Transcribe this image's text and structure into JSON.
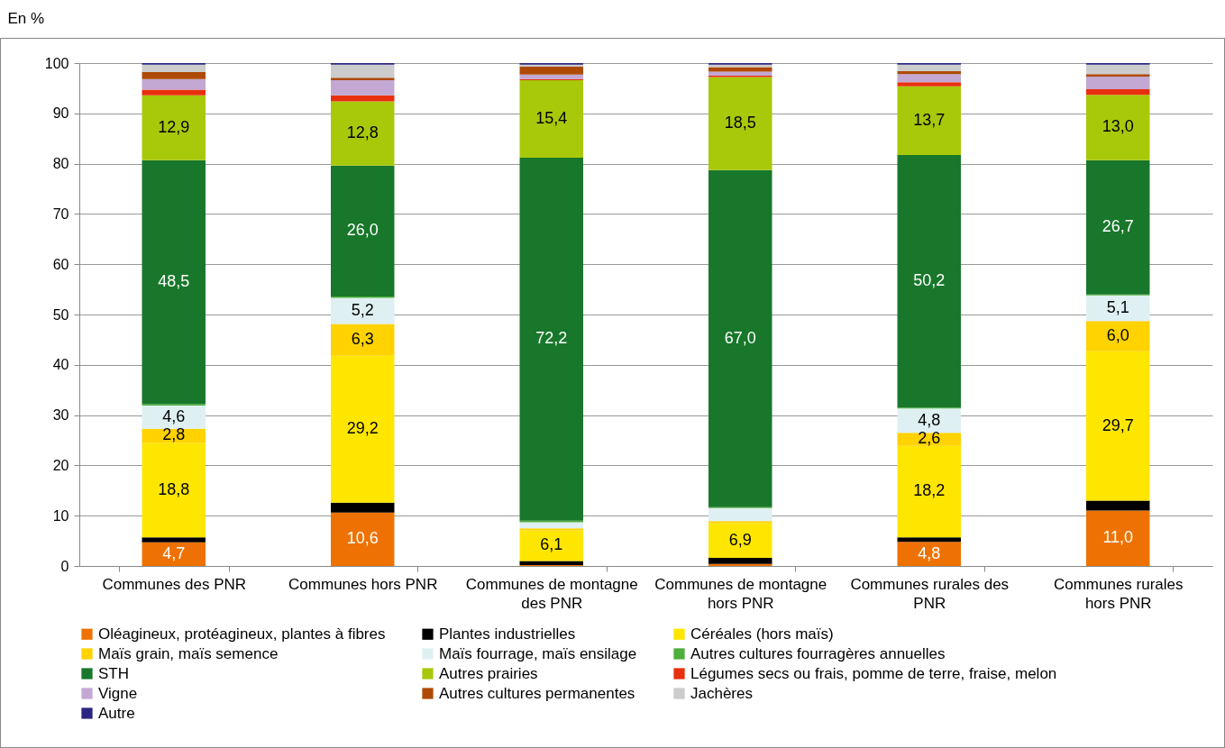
{
  "chart_data": {
    "type": "bar",
    "stacked": true,
    "ylabel": "En %",
    "categories": [
      "Communes des PNR",
      "Communes hors PNR",
      "Communes de montagne des PNR",
      "Communes de montagne hors PNR",
      "Communes rurales des PNR",
      "Communes rurales hors PNR"
    ],
    "series": [
      {
        "name": "Oléagineux, protéagineux, plantes à fibres",
        "color": "#ee7203",
        "values": [
          4.7,
          10.6,
          0.2,
          0.4,
          4.8,
          11.0
        ],
        "value_labels": [
          "4,7",
          "10,6",
          null,
          null,
          "4,8",
          "11,0"
        ]
      },
      {
        "name": "Plantes industrielles",
        "color": "#000000",
        "values": [
          1.0,
          2.0,
          0.8,
          1.2,
          0.9,
          2.0
        ]
      },
      {
        "name": "Céréales (hors maïs)",
        "color": "#ffe600",
        "values": [
          18.8,
          29.2,
          6.1,
          6.9,
          18.2,
          29.7
        ],
        "value_labels": [
          "18,8",
          "29,2",
          "6,1",
          "6,9",
          "18,2",
          "29,7"
        ]
      },
      {
        "name": "Maïs grain, maïs semence",
        "color": "#ffd200",
        "values": [
          2.8,
          6.3,
          0.4,
          0.4,
          2.6,
          6.0
        ],
        "value_labels": [
          "2,8",
          "6,3",
          null,
          null,
          "2,6",
          "6,0"
        ]
      },
      {
        "name": "Maïs fourrage, maïs ensilage",
        "color": "#dff0f2",
        "values": [
          4.6,
          5.2,
          1.2,
          2.6,
          4.8,
          5.1
        ],
        "value_labels": [
          "4,6",
          "5,2",
          null,
          null,
          "4,8",
          "5,1"
        ]
      },
      {
        "name": "Autres cultures fourragères annuelles",
        "color": "#4caf3a",
        "values": [
          0.3,
          0.3,
          0.3,
          0.2,
          0.2,
          0.2
        ]
      },
      {
        "name": "STH",
        "color": "#18772a",
        "values": [
          48.5,
          26.0,
          72.2,
          67.0,
          50.2,
          26.7
        ],
        "value_labels": [
          "48,5",
          "26,0",
          "72,2",
          "67,0",
          "50,2",
          "26,7"
        ]
      },
      {
        "name": "Autres prairies",
        "color": "#a8c80a",
        "values": [
          12.9,
          12.8,
          15.4,
          18.5,
          13.7,
          13.0
        ],
        "value_labels": [
          "12,9",
          "12,8",
          "15,4",
          "18,5",
          "13,7",
          "13,0"
        ]
      },
      {
        "name": "Légumes secs ou frais, pomme de terre, fraise, melon",
        "color": "#e8300e",
        "values": [
          1.1,
          1.2,
          0.2,
          0.3,
          0.8,
          1.1
        ]
      },
      {
        "name": "Vigne",
        "color": "#c2a8d3",
        "values": [
          2.1,
          3.0,
          0.9,
          0.8,
          1.6,
          2.5
        ]
      },
      {
        "name": "Autres cultures permanentes",
        "color": "#ae4a06",
        "values": [
          1.4,
          0.5,
          1.6,
          0.9,
          0.6,
          0.5
        ]
      },
      {
        "name": "Jachères",
        "color": "#cccccc",
        "values": [
          1.5,
          2.6,
          0.4,
          0.5,
          1.3,
          1.9
        ]
      },
      {
        "name": "Autre",
        "color": "#2a2580",
        "values": [
          0.3,
          0.3,
          0.3,
          0.3,
          0.3,
          0.3
        ]
      }
    ],
    "ylim": [
      0,
      100
    ],
    "yticks": [
      0,
      10,
      20,
      30,
      40,
      50,
      60,
      70,
      80,
      90,
      100
    ],
    "grid": "y",
    "legend": "bottom"
  }
}
